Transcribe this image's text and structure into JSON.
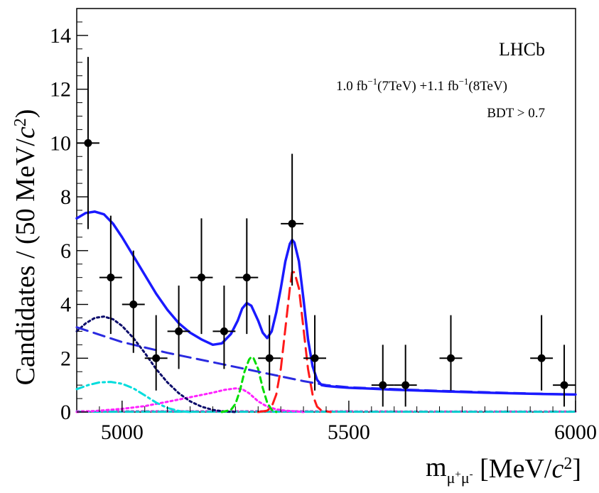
{
  "chart_data": {
    "type": "scatter",
    "title": "",
    "xlabel": "m_{μ+μ-} [MeV/c^2]",
    "ylabel": "Candidates / (50 MeV/c^2)",
    "xlim": [
      4900,
      6000
    ],
    "ylim": [
      0,
      15
    ],
    "x_ticks": [
      5000,
      5500,
      6000
    ],
    "y_ticks": [
      0,
      2,
      4,
      6,
      8,
      10,
      12,
      14
    ],
    "grid": false,
    "legend": "none",
    "annotations": {
      "experiment": "LHCb",
      "lumi_1": "1.0 fb",
      "lumi_1_exp": "−1",
      "lumi_1_energy": "(7TeV) +1.1 fb",
      "lumi_2_exp": "−1",
      "lumi_2_energy": "(8TeV)",
      "cut": "BDT > 0.7"
    },
    "points": [
      {
        "x": 4925,
        "y": 10,
        "ylo": 6.8,
        "yhi": 13.2
      },
      {
        "x": 4975,
        "y": 5,
        "ylo": 2.9,
        "yhi": 7.3
      },
      {
        "x": 5025,
        "y": 4,
        "ylo": 2.2,
        "yhi": 6.0
      },
      {
        "x": 5075,
        "y": 2,
        "ylo": 0.8,
        "yhi": 3.6
      },
      {
        "x": 5125,
        "y": 3,
        "ylo": 1.6,
        "yhi": 4.7
      },
      {
        "x": 5175,
        "y": 5,
        "ylo": 2.9,
        "yhi": 7.2
      },
      {
        "x": 5225,
        "y": 3,
        "ylo": 1.6,
        "yhi": 4.7
      },
      {
        "x": 5275,
        "y": 5,
        "ylo": 2.9,
        "yhi": 7.2
      },
      {
        "x": 5325,
        "y": 2,
        "ylo": 0.8,
        "yhi": 3.6
      },
      {
        "x": 5375,
        "y": 7,
        "ylo": 4.7,
        "yhi": 9.6
      },
      {
        "x": 5425,
        "y": 2,
        "ylo": 0.8,
        "yhi": 3.6
      },
      {
        "x": 5575,
        "y": 1,
        "ylo": 0.2,
        "yhi": 2.5
      },
      {
        "x": 5625,
        "y": 1,
        "ylo": 0.2,
        "yhi": 2.5
      },
      {
        "x": 5725,
        "y": 2,
        "ylo": 0.8,
        "yhi": 3.6
      },
      {
        "x": 5925,
        "y": 2,
        "ylo": 0.8,
        "yhi": 3.6
      },
      {
        "x": 5975,
        "y": 1,
        "ylo": 0.2,
        "yhi": 2.5
      }
    ],
    "x_error_half_width": 25,
    "curves": [
      {
        "name": "",
        "color": "#1a1aff",
        "dash": "solid",
        "x": [
          4900,
          4920,
          4940,
          4960,
          4980,
          5000,
          5025,
          5050,
          5075,
          5100,
          5125,
          5150,
          5175,
          5200,
          5220,
          5240,
          5255,
          5265,
          5275,
          5285,
          5300,
          5310,
          5320,
          5330,
          5340,
          5350,
          5360,
          5370,
          5375,
          5380,
          5390,
          5400,
          5410,
          5420,
          5430,
          5440,
          5450,
          5475,
          5500,
          5550,
          5600,
          5700,
          5800,
          5900,
          6000
        ],
        "y": [
          7.2,
          7.4,
          7.45,
          7.35,
          7.0,
          6.5,
          5.8,
          5.1,
          4.4,
          3.8,
          3.3,
          2.95,
          2.7,
          2.5,
          2.55,
          2.9,
          3.4,
          3.85,
          4.05,
          3.95,
          3.4,
          2.95,
          2.75,
          3.0,
          3.7,
          4.6,
          5.6,
          6.25,
          6.4,
          6.3,
          5.6,
          4.2,
          2.7,
          1.7,
          1.2,
          1.0,
          0.97,
          0.93,
          0.9,
          0.87,
          0.83,
          0.77,
          0.72,
          0.68,
          0.65
        ]
      },
      {
        "name": "",
        "color": "#2a2ae0",
        "dash": "longdash",
        "x": [
          4900,
          5000,
          5100,
          5200,
          5300,
          5400,
          5450,
          5500,
          5600,
          5700,
          5800,
          5900,
          6000
        ],
        "y": [
          3.15,
          2.6,
          2.2,
          1.85,
          1.5,
          1.15,
          1.0,
          0.92,
          0.85,
          0.79,
          0.74,
          0.69,
          0.65
        ]
      },
      {
        "name": "",
        "color": "#ff1a1a",
        "dash": "longdash",
        "x": [
          5300,
          5320,
          5330,
          5340,
          5350,
          5360,
          5370,
          5375,
          5380,
          5390,
          5400,
          5410,
          5420,
          5430,
          5440,
          5460
        ],
        "y": [
          0.0,
          0.05,
          0.2,
          0.65,
          1.6,
          3.1,
          4.6,
          5.2,
          5.2,
          4.6,
          3.1,
          1.6,
          0.65,
          0.2,
          0.05,
          0.0
        ]
      },
      {
        "name": "",
        "color": "#00dd00",
        "dash": "dash",
        "x": [
          5220,
          5240,
          5250,
          5260,
          5270,
          5280,
          5285,
          5290,
          5300,
          5310,
          5320,
          5330,
          5340
        ],
        "y": [
          0.0,
          0.08,
          0.3,
          0.8,
          1.5,
          1.95,
          2.05,
          2.0,
          1.6,
          0.9,
          0.35,
          0.08,
          0.0
        ]
      },
      {
        "name": "",
        "color": "#0a0a6a",
        "dash": "dot",
        "x": [
          4900,
          4920,
          4940,
          4960,
          4980,
          5000,
          5025,
          5050,
          5075,
          5100,
          5125,
          5150,
          5175,
          5200,
          5225,
          5250
        ],
        "y": [
          3.0,
          3.3,
          3.5,
          3.55,
          3.45,
          3.2,
          2.75,
          2.2,
          1.6,
          1.1,
          0.7,
          0.4,
          0.2,
          0.08,
          0.02,
          0.0
        ]
      },
      {
        "name": "",
        "color": "#00dddd",
        "dash": "dashdot",
        "x": [
          4900,
          4925,
          4950,
          4975,
          5000,
          5025,
          5050,
          5075,
          5100,
          5125,
          5150
        ],
        "y": [
          0.85,
          1.0,
          1.1,
          1.12,
          1.05,
          0.88,
          0.62,
          0.35,
          0.15,
          0.04,
          0.0
        ]
      },
      {
        "name": "",
        "color": "#ff22ff",
        "dash": "dot",
        "x": [
          4900,
          4950,
          5000,
          5050,
          5100,
          5150,
          5200,
          5225,
          5250,
          5265,
          5280,
          5300,
          5320,
          5340,
          5360,
          5380,
          5400
        ],
        "y": [
          0.0,
          0.05,
          0.12,
          0.22,
          0.38,
          0.55,
          0.72,
          0.82,
          0.88,
          0.85,
          0.7,
          0.4,
          0.2,
          0.1,
          0.05,
          0.03,
          0.0
        ]
      },
      {
        "name": "",
        "color": "#cc44cc",
        "dash": "dot",
        "x": [
          4900,
          5200,
          5400,
          5600,
          5800,
          6000
        ],
        "y": [
          0.03,
          0.03,
          0.03,
          0.02,
          0.02,
          0.02
        ]
      },
      {
        "name": "",
        "color": "#00cccc",
        "dash": "dashdot",
        "x": [
          4900,
          5400,
          6000
        ],
        "y": [
          0.01,
          0.01,
          0.01
        ]
      }
    ]
  }
}
